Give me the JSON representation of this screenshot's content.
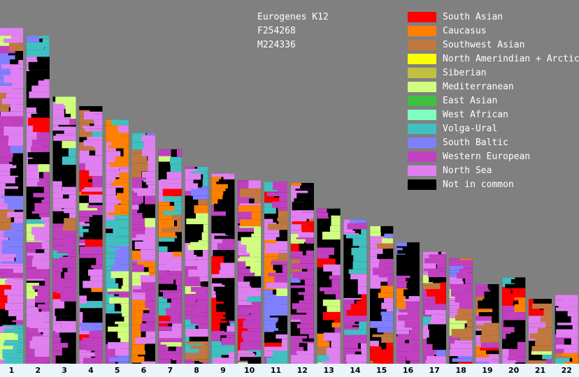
{
  "chart_data": {
    "type": "bar",
    "title_lines": [
      "Eurogenes K12",
      "F254268",
      "M224336"
    ],
    "categories": [
      "1",
      "2",
      "3",
      "4",
      "5",
      "6",
      "7",
      "8",
      "9",
      "10",
      "11",
      "12",
      "13",
      "14",
      "15",
      "16",
      "17",
      "18",
      "19",
      "20",
      "21",
      "22"
    ],
    "chromosome_length_mb": [
      249,
      243,
      198,
      191,
      181,
      171,
      159,
      146,
      141,
      136,
      135,
      134,
      115,
      107,
      102,
      90,
      83,
      78,
      59,
      64,
      48,
      51
    ],
    "ylim": [
      0,
      250
    ],
    "legend": [
      {
        "label": "South Asian",
        "color": "#ff0000"
      },
      {
        "label": "Caucasus",
        "color": "#ff8000"
      },
      {
        "label": "Southwest Asian",
        "color": "#c07840"
      },
      {
        "label": "North Amerindian + Arctic",
        "color": "#ffff00"
      },
      {
        "label": "Siberian",
        "color": "#c0c040"
      },
      {
        "label": "Mediterranean",
        "color": "#d0ff80"
      },
      {
        "label": "East Asian",
        "color": "#40c040"
      },
      {
        "label": "West African",
        "color": "#80ffc0"
      },
      {
        "label": "Volga-Ural",
        "color": "#40c0c0"
      },
      {
        "label": "South Baltic",
        "color": "#8080ff"
      },
      {
        "label": "Western European",
        "color": "#c040c0"
      },
      {
        "label": "North Sea",
        "color": "#e080f0"
      },
      {
        "label": "Not in common",
        "color": "#000000"
      }
    ]
  }
}
